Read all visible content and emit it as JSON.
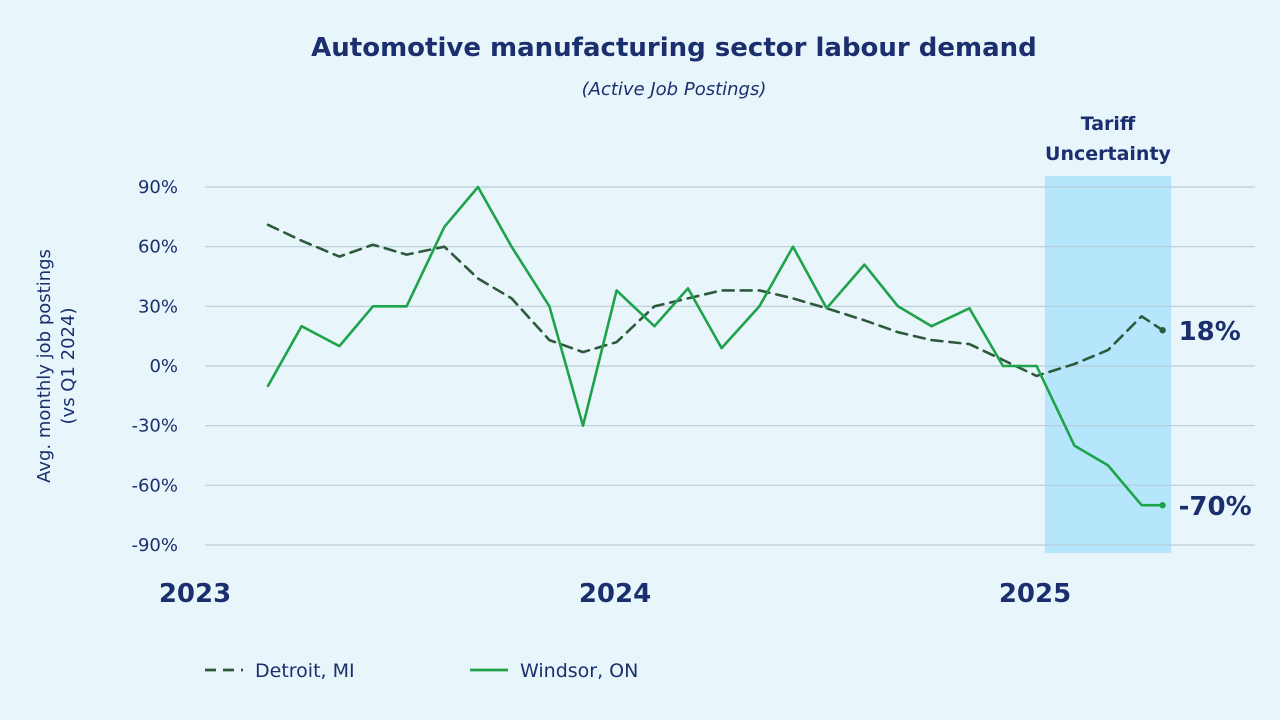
{
  "chart_data": {
    "type": "line",
    "title": "Automotive manufacturing sector labour demand",
    "subtitle": "(Active Job Postings)",
    "ylabel_lines": [
      "Avg. monthly job postings",
      "(vs Q1 2024)"
    ],
    "xlabel": "",
    "ylim": [
      -90,
      90
    ],
    "yticks": [
      90,
      60,
      30,
      0,
      -30,
      -60,
      -90
    ],
    "ytick_labels": [
      "90%",
      "60%",
      "30%",
      "0%",
      "-30%",
      "-60%",
      "-90%"
    ],
    "x_range": [
      2023.0,
      2025.5
    ],
    "xticks": [
      2023,
      2024,
      2025
    ],
    "xtick_labels": [
      "2023",
      "2024",
      "2025"
    ],
    "grid": true,
    "shaded_region": {
      "x_start": 2025.0,
      "x_end": 2025.3,
      "label_lines": [
        "Tariff",
        "Uncertainty"
      ],
      "color": "#b5e6fb"
    },
    "series": [
      {
        "name": "Detroit, MI",
        "style": "dashed",
        "color": "#2d5a3a",
        "x": [
          2023.15,
          2023.23,
          2023.32,
          2023.4,
          2023.48,
          2023.57,
          2023.65,
          2023.73,
          2023.82,
          2023.9,
          2023.98,
          2024.07,
          2024.15,
          2024.23,
          2024.32,
          2024.4,
          2024.48,
          2024.57,
          2024.65,
          2024.73,
          2024.82,
          2024.9,
          2024.98,
          2025.07,
          2025.15,
          2025.23,
          2025.28
        ],
        "values": [
          71,
          63,
          55,
          61,
          56,
          60,
          44,
          34,
          13,
          7,
          12,
          30,
          34,
          38,
          38,
          34,
          29,
          23,
          17,
          13,
          11,
          3,
          -5,
          1,
          8,
          25,
          18
        ]
      },
      {
        "name": "Windsor, ON",
        "style": "solid",
        "color": "#1fa34a",
        "x": [
          2023.15,
          2023.23,
          2023.32,
          2023.4,
          2023.48,
          2023.57,
          2023.65,
          2023.73,
          2023.82,
          2023.9,
          2023.98,
          2024.07,
          2024.15,
          2024.23,
          2024.32,
          2024.4,
          2024.48,
          2024.57,
          2024.65,
          2024.73,
          2024.82,
          2024.9,
          2024.98,
          2025.07,
          2025.15,
          2025.23,
          2025.28
        ],
        "values": [
          -10,
          20,
          10,
          30,
          30,
          70,
          90,
          60,
          30,
          -30,
          38,
          20,
          39,
          9,
          30,
          60,
          29,
          51,
          30,
          20,
          29,
          0,
          0,
          -40,
          -50,
          -70,
          -70
        ]
      }
    ],
    "end_labels": [
      {
        "series": "Detroit, MI",
        "text": "18%"
      },
      {
        "series": "Windsor, ON",
        "text": "-70%"
      }
    ],
    "legend": {
      "placement": "bottom-left",
      "entries": [
        "Detroit, MI",
        "Windsor, ON"
      ]
    },
    "colors": {
      "background": "#e8f6fc",
      "grid": "#b9ccd6",
      "text": "#1b2f6e"
    }
  }
}
